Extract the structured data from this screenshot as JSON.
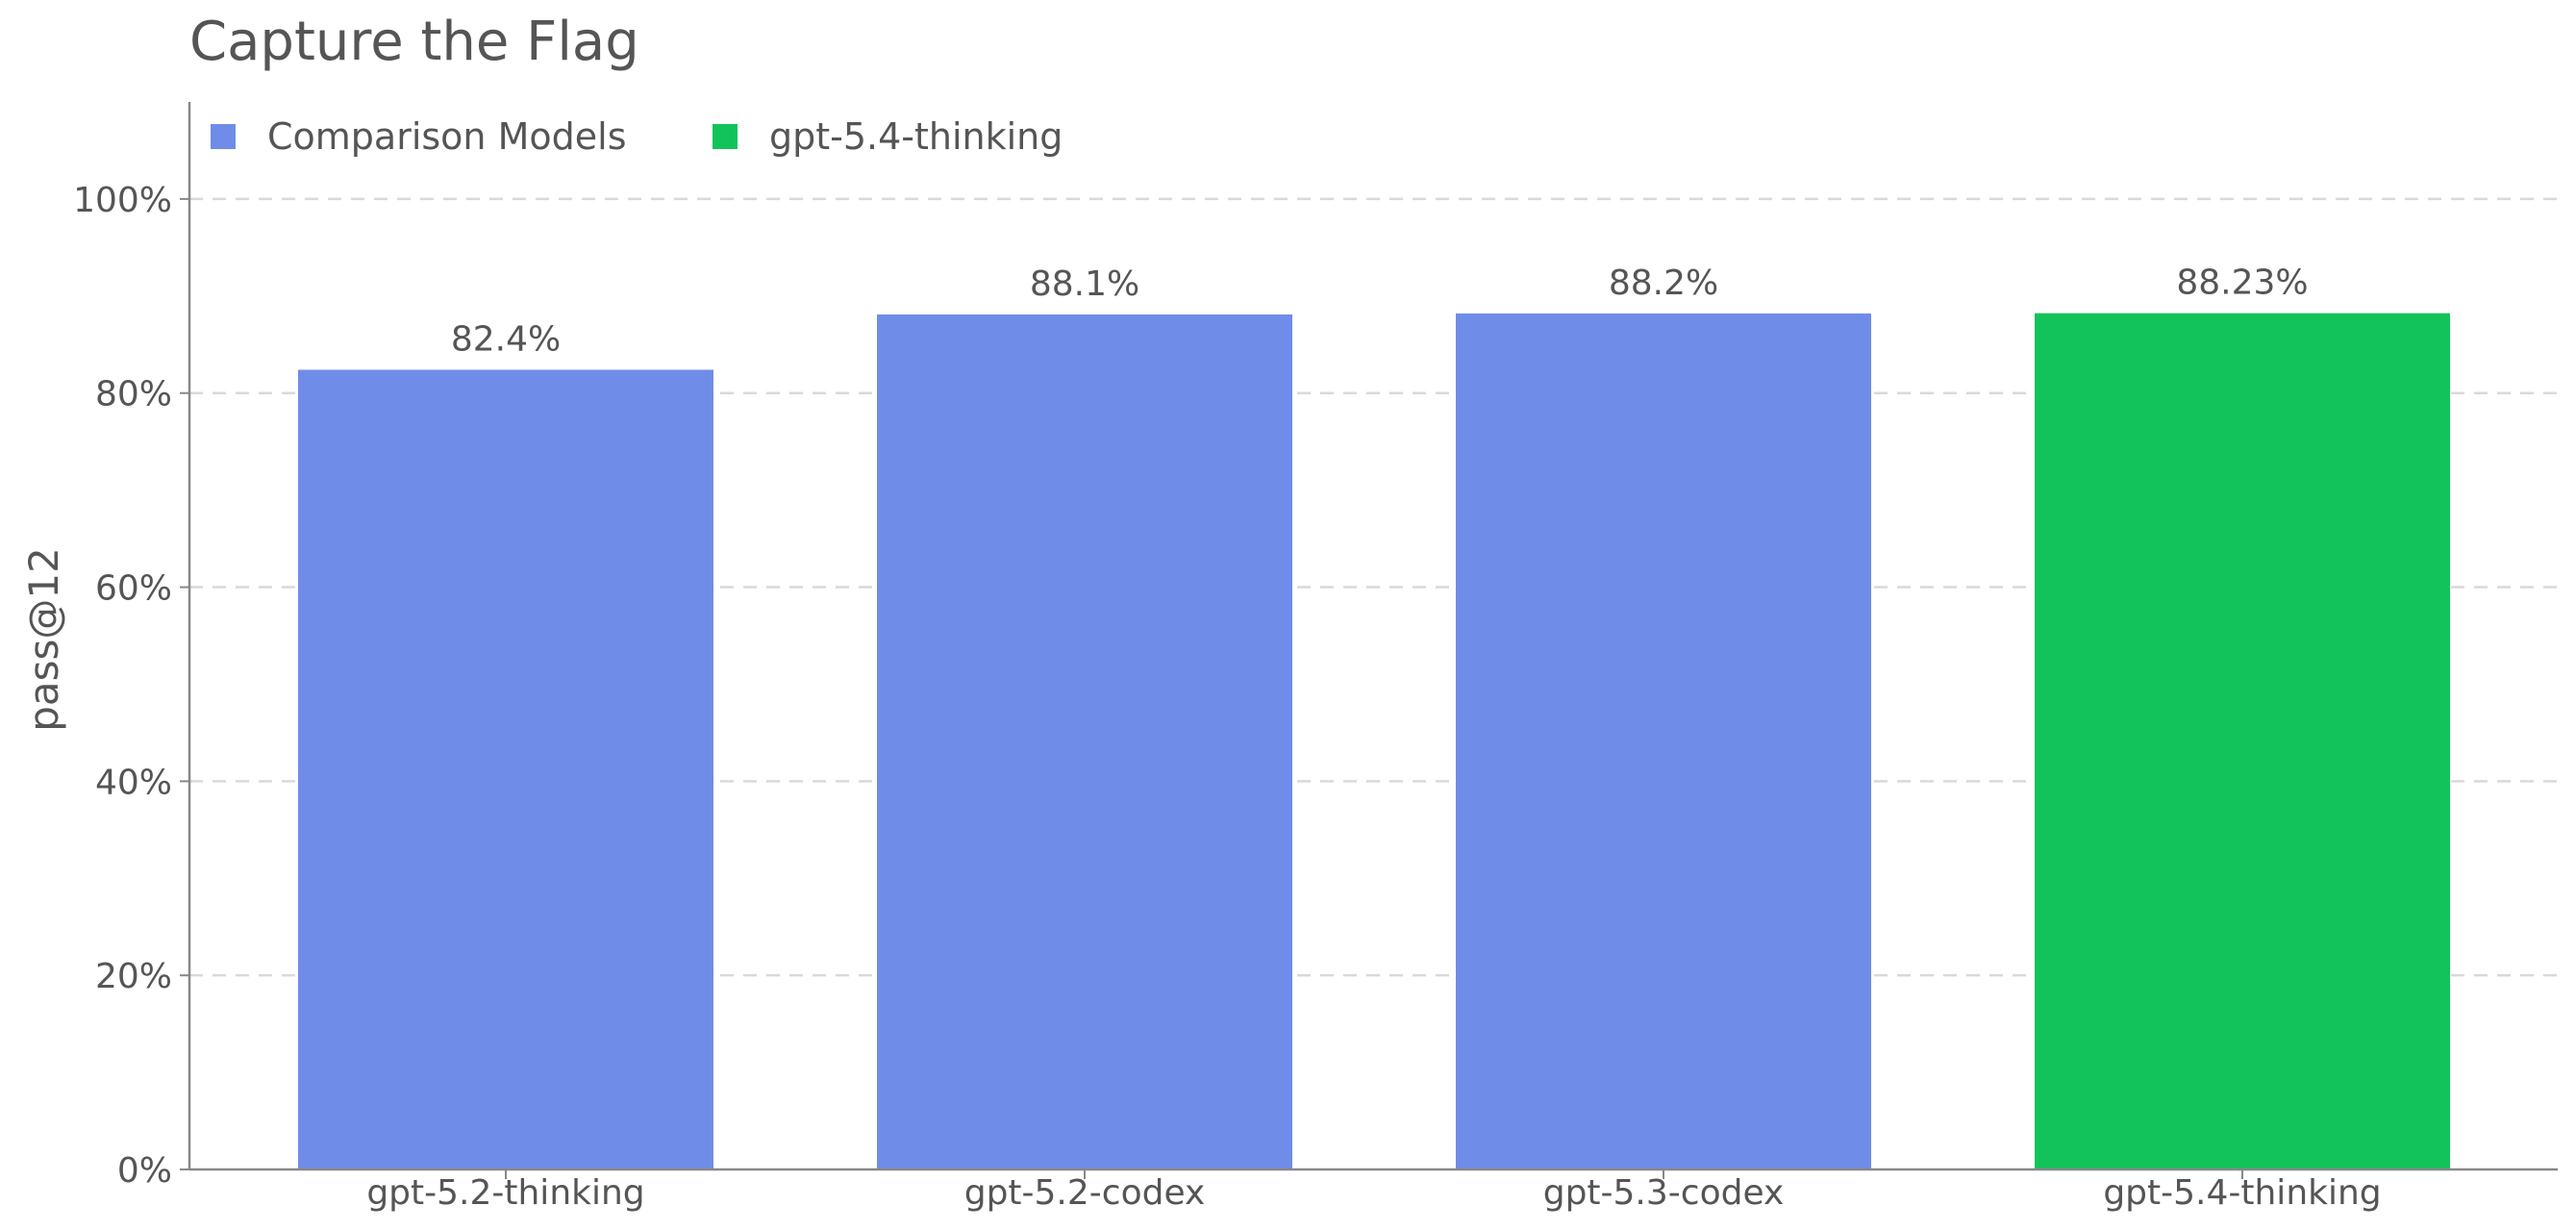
{
  "chart_data": {
    "type": "bar",
    "title": "Capture the Flag",
    "xlabel": "",
    "ylabel": "pass@12",
    "ylim": [
      0,
      110
    ],
    "yticks": [
      0,
      20,
      40,
      60,
      80,
      100
    ],
    "ytick_labels": [
      "0%",
      "20%",
      "40%",
      "60%",
      "80%",
      "100%"
    ],
    "grid": true,
    "legend_position": "top-left",
    "categories": [
      "gpt-5.2-thinking",
      "gpt-5.2-codex",
      "gpt-5.3-codex",
      "gpt-5.4-thinking"
    ],
    "values": [
      82.4,
      88.1,
      88.2,
      88.23
    ],
    "data_labels": [
      "82.4%",
      "88.1%",
      "88.2%",
      "88.23%"
    ],
    "bar_groups": [
      "Comparison Models",
      "Comparison Models",
      "Comparison Models",
      "gpt-5.4-thinking"
    ],
    "legend": [
      {
        "name": "Comparison Models",
        "color": "#6F8DE8"
      },
      {
        "name": "gpt-5.4-thinking",
        "color": "#12C35A"
      }
    ]
  },
  "colors": {
    "comparison": "#6F8DE8",
    "highlight": "#12C35A",
    "grid": "#D9D9D9",
    "axis": "#888888",
    "text": "#555555"
  }
}
